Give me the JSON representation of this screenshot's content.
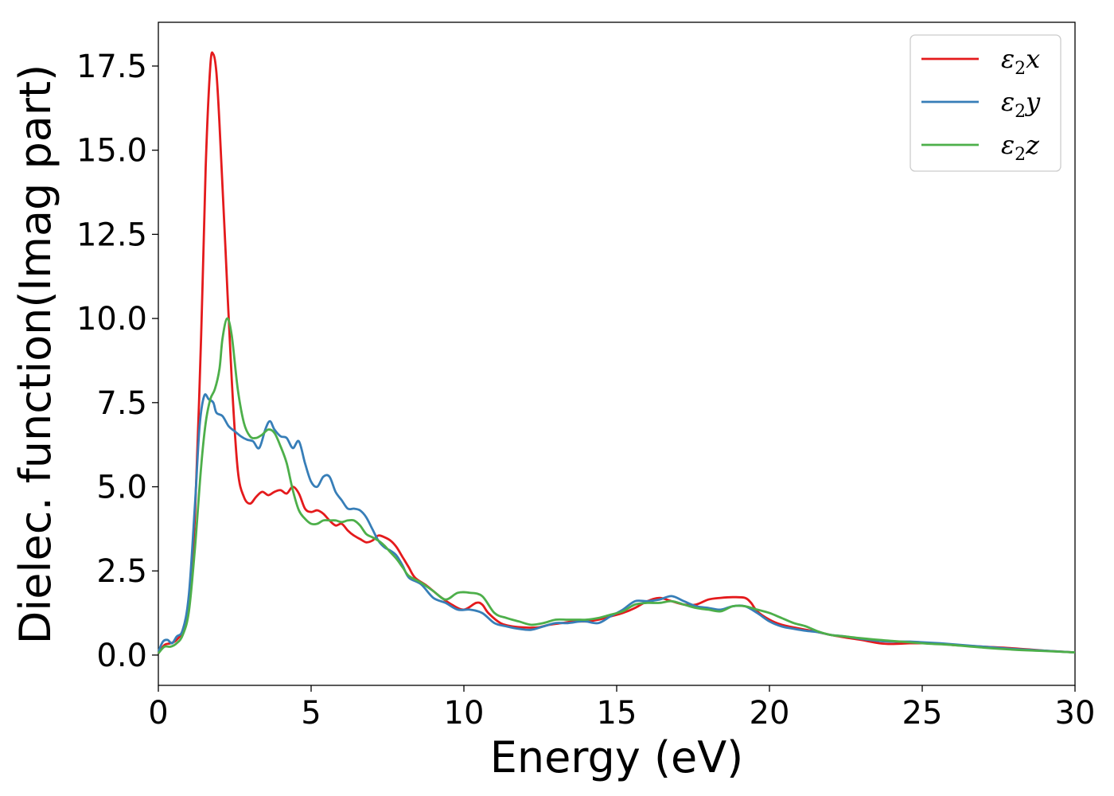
{
  "chart_data": {
    "type": "line",
    "title": "",
    "xlabel": "Energy (eV)",
    "ylabel": "Dielec. function(Imag part)",
    "xlim": [
      0,
      30
    ],
    "ylim": [
      -0.9,
      18.8
    ],
    "xticks": [
      0,
      5,
      10,
      15,
      20,
      25,
      30
    ],
    "xtick_labels": [
      "0",
      "5",
      "10",
      "15",
      "20",
      "25",
      "30"
    ],
    "yticks": [
      0.0,
      2.5,
      5.0,
      7.5,
      10.0,
      12.5,
      15.0,
      17.5
    ],
    "ytick_labels": [
      "0.0",
      "2.5",
      "5.0",
      "7.5",
      "10.0",
      "12.5",
      "15.0",
      "17.5"
    ],
    "grid": false,
    "legend_position": "top-right",
    "series": [
      {
        "name": "ε2x",
        "label_main": "ε",
        "label_sub": "2",
        "label_tail": "x",
        "color": "#e41a1c",
        "points": [
          [
            0,
            0.05
          ],
          [
            0.2,
            0.3
          ],
          [
            0.4,
            0.35
          ],
          [
            0.6,
            0.45
          ],
          [
            0.8,
            0.75
          ],
          [
            1.0,
            1.6
          ],
          [
            1.2,
            4.2
          ],
          [
            1.4,
            9.5
          ],
          [
            1.55,
            14.5
          ],
          [
            1.7,
            17.5
          ],
          [
            1.8,
            17.85
          ],
          [
            1.9,
            17.3
          ],
          [
            2.0,
            15.8
          ],
          [
            2.2,
            12.0
          ],
          [
            2.4,
            8.2
          ],
          [
            2.6,
            5.5
          ],
          [
            2.8,
            4.7
          ],
          [
            3.0,
            4.5
          ],
          [
            3.2,
            4.7
          ],
          [
            3.4,
            4.85
          ],
          [
            3.6,
            4.75
          ],
          [
            3.8,
            4.85
          ],
          [
            4.0,
            4.9
          ],
          [
            4.2,
            4.8
          ],
          [
            4.4,
            5.0
          ],
          [
            4.6,
            4.8
          ],
          [
            4.8,
            4.35
          ],
          [
            5.0,
            4.25
          ],
          [
            5.2,
            4.3
          ],
          [
            5.4,
            4.2
          ],
          [
            5.6,
            4.0
          ],
          [
            5.8,
            3.85
          ],
          [
            6.0,
            3.9
          ],
          [
            6.2,
            3.7
          ],
          [
            6.4,
            3.55
          ],
          [
            6.6,
            3.45
          ],
          [
            6.8,
            3.35
          ],
          [
            7.0,
            3.4
          ],
          [
            7.2,
            3.55
          ],
          [
            7.4,
            3.5
          ],
          [
            7.6,
            3.4
          ],
          [
            7.8,
            3.2
          ],
          [
            8.0,
            2.9
          ],
          [
            8.2,
            2.6
          ],
          [
            8.4,
            2.3
          ],
          [
            8.8,
            2.05
          ],
          [
            9.2,
            1.75
          ],
          [
            9.6,
            1.5
          ],
          [
            10.0,
            1.35
          ],
          [
            10.4,
            1.55
          ],
          [
            10.6,
            1.5
          ],
          [
            10.8,
            1.25
          ],
          [
            11.2,
            0.95
          ],
          [
            11.6,
            0.85
          ],
          [
            12.0,
            0.82
          ],
          [
            12.4,
            0.82
          ],
          [
            12.8,
            0.9
          ],
          [
            13.2,
            0.95
          ],
          [
            13.6,
            1.0
          ],
          [
            14.0,
            1.0
          ],
          [
            14.4,
            1.05
          ],
          [
            14.8,
            1.15
          ],
          [
            15.2,
            1.25
          ],
          [
            15.6,
            1.4
          ],
          [
            16.0,
            1.6
          ],
          [
            16.4,
            1.7
          ],
          [
            16.8,
            1.6
          ],
          [
            17.2,
            1.5
          ],
          [
            17.6,
            1.5
          ],
          [
            18.0,
            1.65
          ],
          [
            18.4,
            1.7
          ],
          [
            18.8,
            1.72
          ],
          [
            19.2,
            1.7
          ],
          [
            19.4,
            1.55
          ],
          [
            19.6,
            1.3
          ],
          [
            20.0,
            1.05
          ],
          [
            20.4,
            0.9
          ],
          [
            20.8,
            0.82
          ],
          [
            21.2,
            0.75
          ],
          [
            21.6,
            0.68
          ],
          [
            22.0,
            0.6
          ],
          [
            22.5,
            0.52
          ],
          [
            23.0,
            0.45
          ],
          [
            23.6,
            0.35
          ],
          [
            24.0,
            0.33
          ],
          [
            24.6,
            0.35
          ],
          [
            25.0,
            0.35
          ],
          [
            25.6,
            0.33
          ],
          [
            26.0,
            0.3
          ],
          [
            27.0,
            0.25
          ],
          [
            28.0,
            0.2
          ],
          [
            29.0,
            0.13
          ],
          [
            30.0,
            0.08
          ]
        ]
      },
      {
        "name": "ε2y",
        "label_main": "ε",
        "label_sub": "2",
        "label_tail": "y",
        "color": "#377eb8",
        "points": [
          [
            0,
            0.1
          ],
          [
            0.15,
            0.4
          ],
          [
            0.3,
            0.45
          ],
          [
            0.45,
            0.35
          ],
          [
            0.6,
            0.55
          ],
          [
            0.8,
            0.75
          ],
          [
            1.0,
            1.8
          ],
          [
            1.2,
            4.5
          ],
          [
            1.35,
            6.8
          ],
          [
            1.5,
            7.7
          ],
          [
            1.65,
            7.6
          ],
          [
            1.8,
            7.5
          ],
          [
            1.9,
            7.2
          ],
          [
            2.1,
            7.1
          ],
          [
            2.3,
            6.8
          ],
          [
            2.5,
            6.65
          ],
          [
            2.7,
            6.5
          ],
          [
            2.9,
            6.4
          ],
          [
            3.1,
            6.35
          ],
          [
            3.3,
            6.15
          ],
          [
            3.5,
            6.7
          ],
          [
            3.65,
            6.95
          ],
          [
            3.8,
            6.7
          ],
          [
            4.0,
            6.5
          ],
          [
            4.2,
            6.45
          ],
          [
            4.4,
            6.15
          ],
          [
            4.6,
            6.35
          ],
          [
            4.8,
            5.7
          ],
          [
            5.0,
            5.15
          ],
          [
            5.2,
            5.0
          ],
          [
            5.4,
            5.3
          ],
          [
            5.6,
            5.3
          ],
          [
            5.8,
            4.85
          ],
          [
            6.0,
            4.6
          ],
          [
            6.2,
            4.35
          ],
          [
            6.4,
            4.35
          ],
          [
            6.6,
            4.3
          ],
          [
            6.8,
            4.1
          ],
          [
            7.0,
            3.75
          ],
          [
            7.2,
            3.4
          ],
          [
            7.4,
            3.2
          ],
          [
            7.6,
            3.1
          ],
          [
            7.8,
            2.95
          ],
          [
            8.0,
            2.65
          ],
          [
            8.2,
            2.3
          ],
          [
            8.6,
            2.1
          ],
          [
            9.0,
            1.7
          ],
          [
            9.4,
            1.55
          ],
          [
            9.8,
            1.35
          ],
          [
            10.2,
            1.35
          ],
          [
            10.6,
            1.25
          ],
          [
            11.0,
            0.95
          ],
          [
            11.4,
            0.85
          ],
          [
            11.8,
            0.78
          ],
          [
            12.2,
            0.75
          ],
          [
            12.6,
            0.85
          ],
          [
            13.0,
            0.95
          ],
          [
            13.4,
            0.95
          ],
          [
            13.8,
            1.0
          ],
          [
            14.0,
            1.0
          ],
          [
            14.4,
            0.95
          ],
          [
            14.8,
            1.15
          ],
          [
            15.2,
            1.35
          ],
          [
            15.6,
            1.6
          ],
          [
            16.0,
            1.6
          ],
          [
            16.4,
            1.65
          ],
          [
            16.8,
            1.75
          ],
          [
            17.2,
            1.6
          ],
          [
            17.6,
            1.45
          ],
          [
            18.0,
            1.4
          ],
          [
            18.4,
            1.35
          ],
          [
            18.8,
            1.45
          ],
          [
            19.2,
            1.45
          ],
          [
            19.6,
            1.25
          ],
          [
            20.0,
            1.0
          ],
          [
            20.4,
            0.85
          ],
          [
            20.8,
            0.78
          ],
          [
            21.2,
            0.72
          ],
          [
            21.6,
            0.68
          ],
          [
            22.0,
            0.6
          ],
          [
            22.5,
            0.55
          ],
          [
            23.0,
            0.48
          ],
          [
            23.6,
            0.42
          ],
          [
            24.0,
            0.4
          ],
          [
            24.6,
            0.4
          ],
          [
            25.0,
            0.38
          ],
          [
            25.6,
            0.35
          ],
          [
            26.0,
            0.32
          ],
          [
            27.0,
            0.25
          ],
          [
            28.0,
            0.18
          ],
          [
            29.0,
            0.13
          ],
          [
            30.0,
            0.08
          ]
        ]
      },
      {
        "name": "ε2z",
        "label_main": "ε",
        "label_sub": "2",
        "label_tail": "z",
        "color": "#4daf4a",
        "points": [
          [
            0,
            0.05
          ],
          [
            0.2,
            0.25
          ],
          [
            0.4,
            0.25
          ],
          [
            0.6,
            0.35
          ],
          [
            0.8,
            0.6
          ],
          [
            1.0,
            1.3
          ],
          [
            1.2,
            3.2
          ],
          [
            1.4,
            5.6
          ],
          [
            1.55,
            6.9
          ],
          [
            1.7,
            7.6
          ],
          [
            1.85,
            7.9
          ],
          [
            2.0,
            8.5
          ],
          [
            2.1,
            9.4
          ],
          [
            2.25,
            10.0
          ],
          [
            2.4,
            9.5
          ],
          [
            2.6,
            7.9
          ],
          [
            2.8,
            6.9
          ],
          [
            3.0,
            6.5
          ],
          [
            3.2,
            6.45
          ],
          [
            3.4,
            6.55
          ],
          [
            3.6,
            6.7
          ],
          [
            3.8,
            6.6
          ],
          [
            4.0,
            6.2
          ],
          [
            4.2,
            5.7
          ],
          [
            4.4,
            4.9
          ],
          [
            4.6,
            4.3
          ],
          [
            4.8,
            4.05
          ],
          [
            5.0,
            3.9
          ],
          [
            5.2,
            3.9
          ],
          [
            5.4,
            4.0
          ],
          [
            5.6,
            4.0
          ],
          [
            5.8,
            4.0
          ],
          [
            6.0,
            3.95
          ],
          [
            6.2,
            4.0
          ],
          [
            6.4,
            4.0
          ],
          [
            6.6,
            3.85
          ],
          [
            6.8,
            3.6
          ],
          [
            7.0,
            3.5
          ],
          [
            7.2,
            3.4
          ],
          [
            7.4,
            3.25
          ],
          [
            7.6,
            3.05
          ],
          [
            7.8,
            2.85
          ],
          [
            8.0,
            2.6
          ],
          [
            8.2,
            2.35
          ],
          [
            8.6,
            2.15
          ],
          [
            9.0,
            1.9
          ],
          [
            9.4,
            1.65
          ],
          [
            9.8,
            1.85
          ],
          [
            10.2,
            1.85
          ],
          [
            10.6,
            1.75
          ],
          [
            11.0,
            1.25
          ],
          [
            11.4,
            1.1
          ],
          [
            11.8,
            1.0
          ],
          [
            12.2,
            0.9
          ],
          [
            12.6,
            0.95
          ],
          [
            13.0,
            1.05
          ],
          [
            13.4,
            1.05
          ],
          [
            13.8,
            1.05
          ],
          [
            14.0,
            1.05
          ],
          [
            14.4,
            1.1
          ],
          [
            14.8,
            1.2
          ],
          [
            15.2,
            1.3
          ],
          [
            15.6,
            1.5
          ],
          [
            16.0,
            1.55
          ],
          [
            16.4,
            1.55
          ],
          [
            16.8,
            1.6
          ],
          [
            17.2,
            1.5
          ],
          [
            17.6,
            1.4
          ],
          [
            18.0,
            1.35
          ],
          [
            18.4,
            1.3
          ],
          [
            18.8,
            1.45
          ],
          [
            19.2,
            1.45
          ],
          [
            19.6,
            1.35
          ],
          [
            20.0,
            1.25
          ],
          [
            20.4,
            1.1
          ],
          [
            20.8,
            0.95
          ],
          [
            21.2,
            0.85
          ],
          [
            21.6,
            0.7
          ],
          [
            22.0,
            0.6
          ],
          [
            22.5,
            0.55
          ],
          [
            23.0,
            0.5
          ],
          [
            23.6,
            0.45
          ],
          [
            24.0,
            0.42
          ],
          [
            24.6,
            0.38
          ],
          [
            25.0,
            0.35
          ],
          [
            25.6,
            0.32
          ],
          [
            26.0,
            0.3
          ],
          [
            27.0,
            0.22
          ],
          [
            28.0,
            0.16
          ],
          [
            29.0,
            0.12
          ],
          [
            30.0,
            0.08
          ]
        ]
      }
    ]
  }
}
